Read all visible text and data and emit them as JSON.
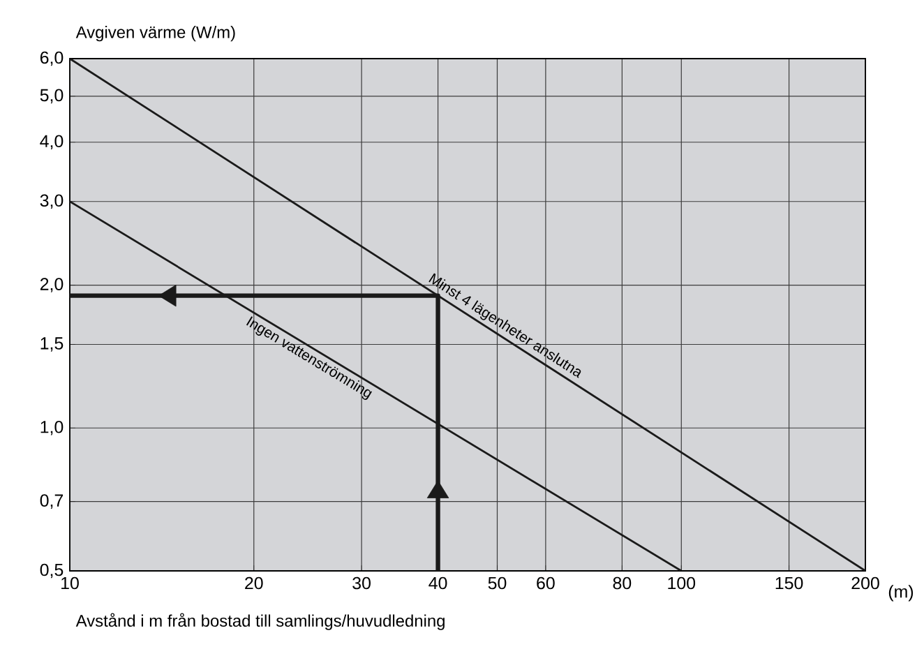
{
  "chart_data": {
    "type": "line",
    "xlabel": "Avstånd i m från bostad till samlings/huvudledning",
    "ylabel": "Avgiven värme (W/m)",
    "log": "xy",
    "grid": true,
    "xlim": [
      10,
      200
    ],
    "ylim": [
      0.5,
      6
    ],
    "xticks": [
      10,
      20,
      30,
      40,
      50,
      60,
      80,
      100,
      150,
      200
    ],
    "yticks": [
      {
        "value": 0.5,
        "label": "0,5"
      },
      {
        "value": 0.7,
        "label": "0,7"
      },
      {
        "value": 1,
        "label": "1,0"
      },
      {
        "value": 1.5,
        "label": "1,5"
      },
      {
        "value": 2,
        "label": "2,0"
      },
      {
        "value": 3,
        "label": "3,0"
      },
      {
        "value": 4,
        "label": "4,0"
      },
      {
        "value": 5,
        "label": "5,0"
      },
      {
        "value": 6,
        "label": "6,0"
      }
    ],
    "annotations": [
      "(m)"
    ],
    "series": [
      {
        "name": "Minst 4 lägenheter anslutna",
        "color": "#1a1a1a",
        "x": [
          10,
          200
        ],
        "values": [
          6,
          0.5
        ]
      },
      {
        "name": "Ingen vattenströmning",
        "color": "#1a1a1a",
        "x": [
          10,
          100
        ],
        "values": [
          3,
          0.5
        ]
      },
      {
        "color": "#1a1a1a",
        "x": [
          40,
          40,
          10
        ],
        "values": [
          0.5,
          1.9,
          1.9
        ]
      }
    ]
  }
}
